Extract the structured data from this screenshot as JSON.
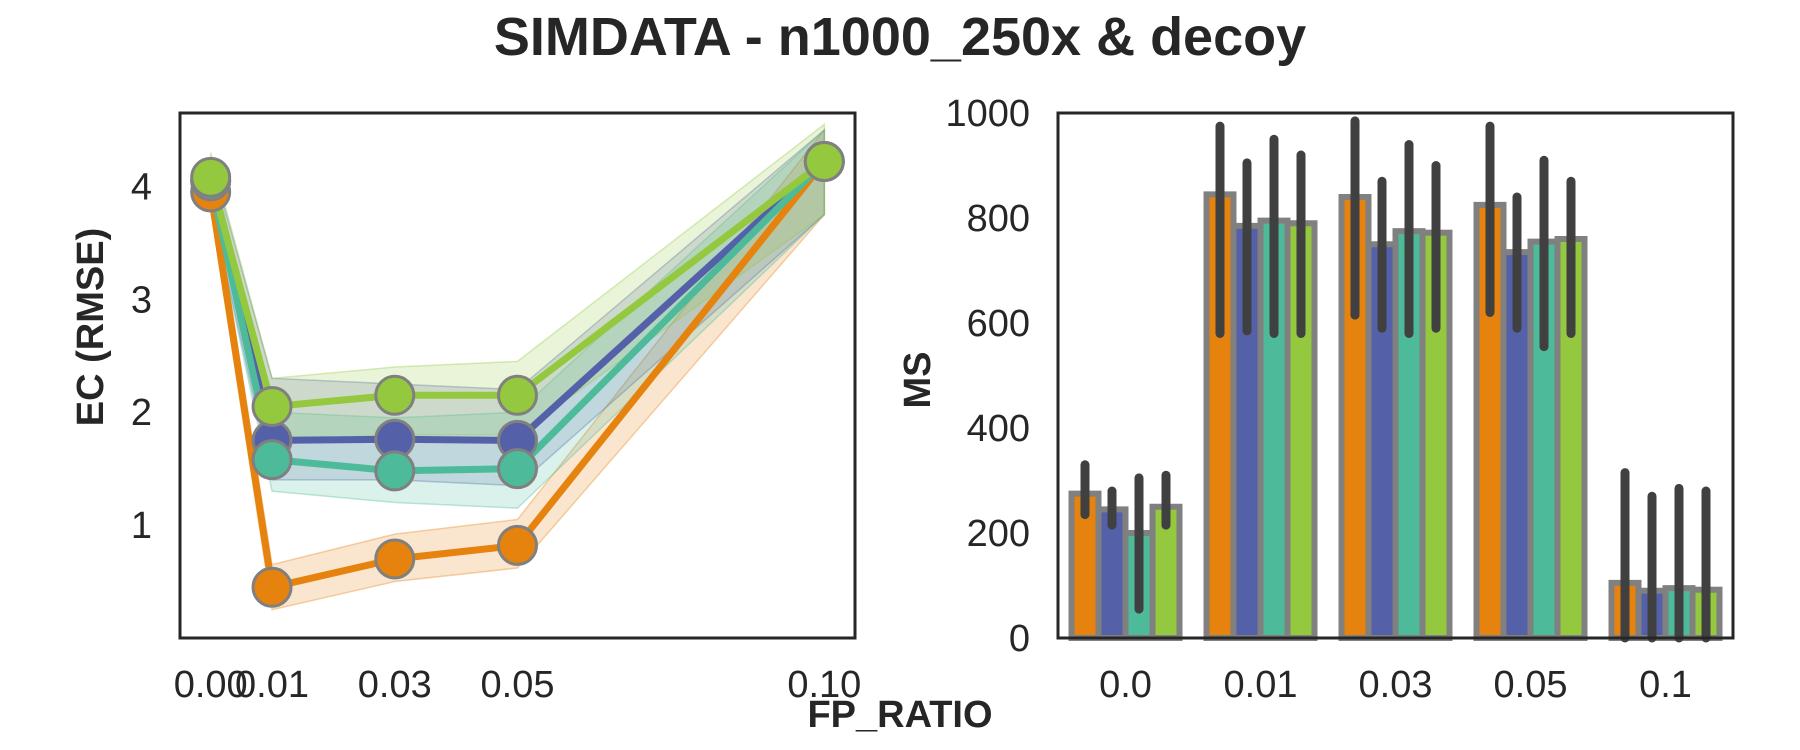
{
  "figure": {
    "title": "SIMDATA - n1000_250x & decoy",
    "xlabel": "FP_RATIO"
  },
  "colors": {
    "series": [
      "#e6820e",
      "#5461a9",
      "#4dbb9a",
      "#93c83f"
    ],
    "edge": "#808080",
    "errbar": "#404040",
    "axis": "#262626"
  },
  "chart_data": [
    {
      "type": "line",
      "ylabel": "EC (RMSE)",
      "x": [
        0.0,
        0.01,
        0.03,
        0.05,
        0.1
      ],
      "xtick_labels": [
        "0.00",
        "0.01",
        "0.03",
        "0.05",
        "0.10"
      ],
      "xlim": [
        -0.005,
        0.105
      ],
      "ylim": [
        0.0,
        4.65
      ],
      "yticks": [
        1,
        2,
        3,
        4
      ],
      "grid": false,
      "legend": "none",
      "series": [
        {
          "values": [
            3.95,
            0.45,
            0.7,
            0.82,
            4.22
          ],
          "ci_low": [
            3.8,
            0.25,
            0.5,
            0.62,
            3.75
          ],
          "ci_high": [
            4.1,
            0.65,
            0.92,
            1.05,
            4.5
          ]
        },
        {
          "values": [
            4.05,
            1.75,
            1.76,
            1.75,
            4.22
          ],
          "ci_low": [
            3.85,
            1.4,
            1.4,
            1.35,
            3.75
          ],
          "ci_high": [
            4.25,
            2.3,
            2.25,
            2.2,
            4.5
          ]
        },
        {
          "values": [
            4.05,
            1.58,
            1.48,
            1.5,
            4.22
          ],
          "ci_low": [
            3.85,
            1.3,
            1.2,
            1.15,
            3.75
          ],
          "ci_high": [
            4.25,
            2.0,
            1.95,
            2.0,
            4.5
          ]
        },
        {
          "values": [
            4.08,
            2.05,
            2.15,
            2.15,
            4.22
          ],
          "ci_low": [
            3.85,
            1.75,
            1.8,
            1.8,
            3.75
          ],
          "ci_high": [
            4.3,
            2.3,
            2.4,
            2.45,
            4.55
          ]
        }
      ]
    },
    {
      "type": "bar",
      "ylabel": "MS",
      "categories": [
        "0.0",
        "0.01",
        "0.03",
        "0.05",
        "0.1"
      ],
      "ylim": [
        0,
        1000
      ],
      "yticks": [
        0,
        200,
        400,
        600,
        800,
        1000
      ],
      "grid": false,
      "legend": "none",
      "series": [
        {
          "values": [
            275,
            845,
            840,
            825,
            105
          ],
          "err_low": [
            235,
            580,
            615,
            620,
            0
          ],
          "err_high": [
            330,
            975,
            985,
            975,
            315
          ]
        },
        {
          "values": [
            245,
            785,
            750,
            735,
            90
          ],
          "err_low": [
            215,
            585,
            590,
            590,
            0
          ],
          "err_high": [
            280,
            905,
            870,
            840,
            270
          ]
        },
        {
          "values": [
            200,
            795,
            775,
            755,
            95
          ],
          "err_low": [
            55,
            580,
            580,
            555,
            0
          ],
          "err_high": [
            305,
            950,
            940,
            910,
            285
          ]
        },
        {
          "values": [
            250,
            790,
            772,
            760,
            92
          ],
          "err_low": [
            215,
            580,
            590,
            580,
            0
          ],
          "err_high": [
            310,
            920,
            900,
            870,
            280
          ]
        }
      ]
    }
  ]
}
